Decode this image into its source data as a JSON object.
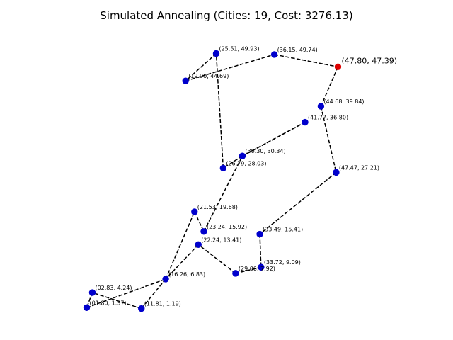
{
  "chart_data": {
    "type": "scatter",
    "title": "Simulated Annealing (Cities: 19, Cost: 3276.13)",
    "xlabel": "",
    "ylabel": "",
    "axes_visible": false,
    "grid": false,
    "xlim": [
      -0.6,
      50.2
    ],
    "ylim": [
      -1.3,
      52.3
    ],
    "point_color": "#0000cc",
    "start_color": "#dd0000",
    "path_color": "#000000",
    "path_style": "dashed",
    "start_index": 0,
    "points": [
      {
        "x": 47.8,
        "y": 47.39,
        "label": "(47.80, 47.39)"
      },
      {
        "x": 44.68,
        "y": 39.84,
        "label": "(44.68, 39.84)"
      },
      {
        "x": 47.47,
        "y": 27.21,
        "label": "(47.47, 27.21)"
      },
      {
        "x": 33.49,
        "y": 15.41,
        "label": "(33.49, 15.41)"
      },
      {
        "x": 33.72,
        "y": 9.09,
        "label": "(33.72,  9.09)"
      },
      {
        "x": 29.06,
        "y": 7.92,
        "label": "(29.06,  7.92)"
      },
      {
        "x": 22.24,
        "y": 13.41,
        "label": "(22.24, 13.41)"
      },
      {
        "x": 16.26,
        "y": 6.83,
        "label": "(16.26,  6.83)"
      },
      {
        "x": 11.81,
        "y": 1.19,
        "label": "(11.81,  1.19)"
      },
      {
        "x": 2.83,
        "y": 4.24,
        "label": "(02.83,  4.24)"
      },
      {
        "x": 1.8,
        "y": 1.37,
        "label": "(01.80,  1.37)"
      },
      {
        "x": 21.53,
        "y": 19.68,
        "label": "(21.53, 19.68)"
      },
      {
        "x": 23.24,
        "y": 15.92,
        "label": "(23.24, 15.92)"
      },
      {
        "x": 30.3,
        "y": 30.34,
        "label": "(30.30, 30.34)"
      },
      {
        "x": 41.77,
        "y": 36.8,
        "label": "(41.77, 36.80)"
      },
      {
        "x": 26.79,
        "y": 28.03,
        "label": "(26.79, 28.03)"
      },
      {
        "x": 25.51,
        "y": 49.93,
        "label": "(25.51, 49.93)"
      },
      {
        "x": 19.9,
        "y": 44.69,
        "label": "(19.90, 44.69)"
      },
      {
        "x": 36.15,
        "y": 49.74,
        "label": "(36.15, 49.74)"
      }
    ],
    "route": [
      0,
      1,
      2,
      3,
      4,
      5,
      6,
      7,
      8,
      9,
      10,
      7,
      11,
      12,
      13,
      14,
      13,
      15,
      16,
      17,
      18,
      0
    ]
  }
}
